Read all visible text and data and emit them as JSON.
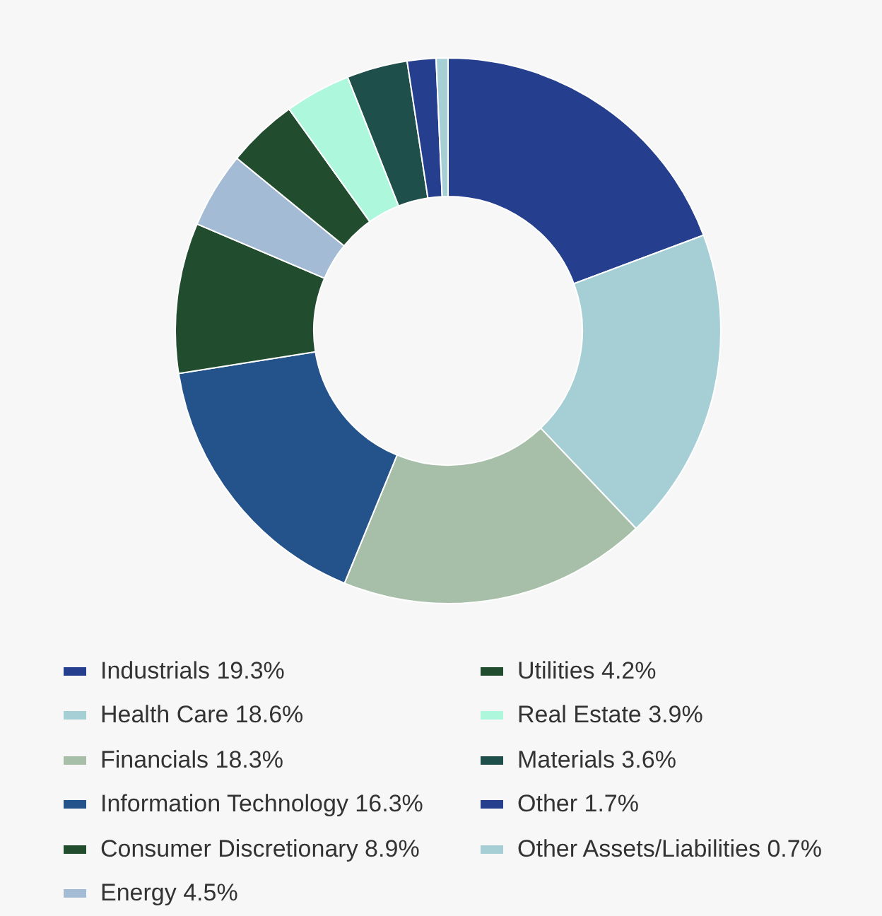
{
  "chart_data": {
    "type": "donut",
    "categories": [
      "Industrials",
      "Health Care",
      "Financials",
      "Information Technology",
      "Consumer Discretionary",
      "Energy",
      "Utilities",
      "Real Estate",
      "Materials",
      "Other",
      "Other Assets/Liabilities"
    ],
    "values": [
      19.3,
      18.6,
      18.3,
      16.3,
      8.9,
      4.5,
      4.2,
      3.9,
      3.6,
      1.7,
      0.7
    ],
    "value_labels": [
      "19.3%",
      "18.6%",
      "18.3%",
      "16.3%",
      "8.9%",
      "4.5%",
      "4.2%",
      "3.9%",
      "3.6%",
      "1.7%",
      "0.7%"
    ],
    "colors": [
      "#253f8e",
      "#a6cfd5",
      "#a7bfa9",
      "#24528a",
      "#214d2e",
      "#a3bbd4",
      "#214d2e",
      "#adf7dc",
      "#1f4f4a",
      "#253f8e",
      "#a6cfd5"
    ],
    "legend": "bottom"
  }
}
